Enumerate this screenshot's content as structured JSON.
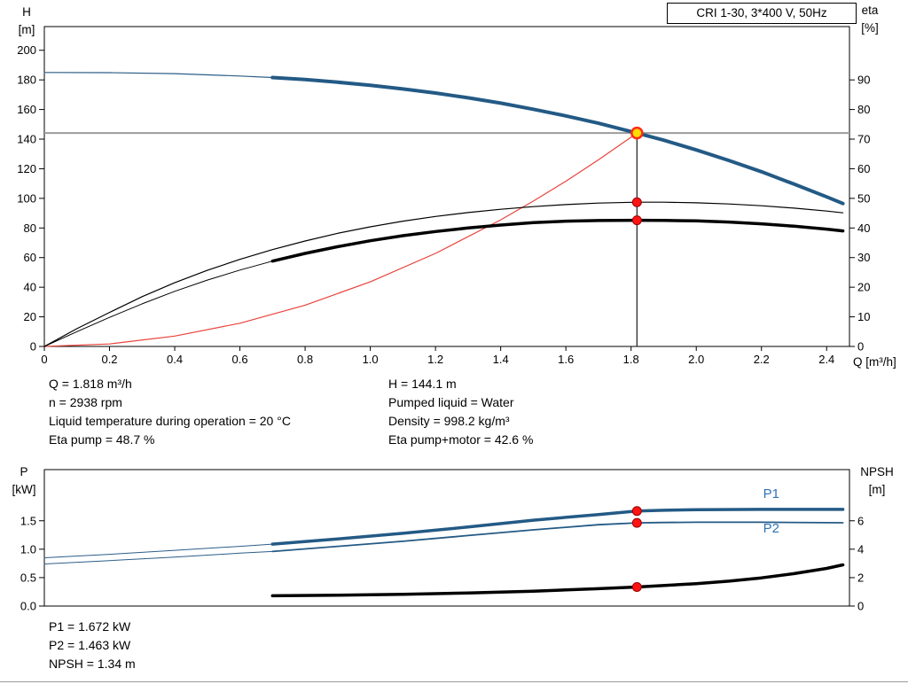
{
  "top_chart": {
    "y_left_title": "H",
    "y_left_unit": "[m]",
    "y_right_title": "eta",
    "y_right_unit": "[%]",
    "x_title": "Q [m³/h]"
  },
  "bottom_chart": {
    "y_left_title": "P",
    "y_left_unit": "[kW]",
    "y_right_title": "NPSH",
    "y_right_unit": "[m]"
  },
  "operating_point_info": {
    "left": [
      "Q = 1.818 m³/h",
      "n = 2938 rpm",
      "Liquid temperature during operation = 20 °C",
      "Eta pump = 48.7 %"
    ],
    "right": [
      "H = 144.1 m",
      "Pumped liquid = Water",
      "Density = 998.2 kg/m³",
      "Eta pump+motor = 42.6 %"
    ]
  },
  "power_info": [
    "P1 = 1.672 kW",
    "P2 = 1.463 kW",
    "NPSH = 1.34 m"
  ],
  "chart_data": [
    {
      "id": "hq_eta",
      "type": "line",
      "title": "CRI 1-30, 3*400 V, 50Hz",
      "xlabel": "Q [m³/h]",
      "ylabel_left": "H [m]",
      "ylabel_right": "eta [%]",
      "xlim": [
        0,
        2.47
      ],
      "ylim_left": [
        0,
        216
      ],
      "ylim_right": [
        0,
        108
      ],
      "grid": false,
      "x_ticks": [
        [
          0,
          "0"
        ],
        [
          0.2,
          "0.2"
        ],
        [
          0.4,
          "0.4"
        ],
        [
          0.6,
          "0.6"
        ],
        [
          0.8,
          "0.8"
        ],
        [
          1,
          "1.0"
        ],
        [
          1.2,
          "1.2"
        ],
        [
          1.4,
          "1.4"
        ],
        [
          1.6,
          "1.6"
        ],
        [
          1.8,
          "1.8"
        ],
        [
          2,
          "2.0"
        ],
        [
          2.2,
          "2.2"
        ],
        [
          2.4,
          "2.4"
        ]
      ],
      "y_ticks_left": [
        [
          0,
          "0"
        ],
        [
          20,
          "20"
        ],
        [
          40,
          "40"
        ],
        [
          60,
          "60"
        ],
        [
          80,
          "80"
        ],
        [
          100,
          "100"
        ],
        [
          120,
          "120"
        ],
        [
          140,
          "140"
        ],
        [
          160,
          "160"
        ],
        [
          180,
          "180"
        ],
        [
          200,
          "200"
        ]
      ],
      "y_ticks_right": [
        [
          0,
          "0"
        ],
        [
          10,
          "10"
        ],
        [
          20,
          "20"
        ],
        [
          30,
          "30"
        ],
        [
          40,
          "40"
        ],
        [
          50,
          "50"
        ],
        [
          60,
          "60"
        ],
        [
          70,
          "70"
        ],
        [
          80,
          "80"
        ],
        [
          90,
          "90"
        ]
      ],
      "ref_lines": [
        {
          "type": "h",
          "y": 144.1,
          "axis": "left",
          "x1": 0,
          "x2": 2.47,
          "color": "#9b9b9b",
          "width": 2
        },
        {
          "type": "v",
          "x": 1.818,
          "y1": 0,
          "y2": 144.1,
          "axis": "left",
          "color": "#1a1a1a",
          "width": 1.2
        }
      ],
      "series": [
        {
          "name": "system-curve",
          "axis": "left",
          "color": "#e8433c",
          "width": 1.2,
          "points": [
            [
              0,
              0
            ],
            [
              0.2,
              1.7
            ],
            [
              0.4,
              7
            ],
            [
              0.6,
              15.7
            ],
            [
              0.8,
              27.9
            ],
            [
              1,
              43.6
            ],
            [
              1.2,
              62.8
            ],
            [
              1.4,
              85.5
            ],
            [
              1.5,
              98.1
            ],
            [
              1.6,
              111.6
            ],
            [
              1.7,
              126
            ],
            [
              1.818,
              144.1
            ]
          ]
        },
        {
          "name": "eta-pump-curve",
          "axis": "right",
          "color": "#000000",
          "width": 1.2,
          "points": [
            [
              0,
              0
            ],
            [
              0.1,
              6
            ],
            [
              0.2,
              11.5
            ],
            [
              0.3,
              16.8
            ],
            [
              0.4,
              21.5
            ],
            [
              0.5,
              25.7
            ],
            [
              0.6,
              29.4
            ],
            [
              0.7,
              32.7
            ],
            [
              0.8,
              35.6
            ],
            [
              0.9,
              38.2
            ],
            [
              1,
              40.4
            ],
            [
              1.1,
              42.3
            ],
            [
              1.2,
              43.9
            ],
            [
              1.3,
              45.2
            ],
            [
              1.4,
              46.3
            ],
            [
              1.5,
              47.2
            ],
            [
              1.6,
              47.9
            ],
            [
              1.7,
              48.4
            ],
            [
              1.818,
              48.7
            ],
            [
              1.9,
              48.7
            ],
            [
              2,
              48.5
            ],
            [
              2.1,
              48.1
            ],
            [
              2.2,
              47.5
            ],
            [
              2.3,
              46.7
            ],
            [
              2.4,
              45.7
            ],
            [
              2.45,
              45.1
            ]
          ]
        },
        {
          "name": "eta-pump-motor-curve-thin",
          "axis": "right",
          "color": "#000000",
          "width": 1,
          "points": [
            [
              0,
              0
            ],
            [
              0.1,
              5
            ],
            [
              0.2,
              9.8
            ],
            [
              0.3,
              14.4
            ],
            [
              0.4,
              18.6
            ],
            [
              0.5,
              22.4
            ],
            [
              0.6,
              25.8
            ],
            [
              0.7,
              28.8
            ]
          ]
        },
        {
          "name": "eta-pump-motor-curve",
          "axis": "right",
          "color": "#000000",
          "width": 3.5,
          "points": [
            [
              0.7,
              28.8
            ],
            [
              0.8,
              31.4
            ],
            [
              0.9,
              33.7
            ],
            [
              1,
              35.7
            ],
            [
              1.1,
              37.4
            ],
            [
              1.2,
              38.8
            ],
            [
              1.3,
              40
            ],
            [
              1.4,
              41
            ],
            [
              1.5,
              41.8
            ],
            [
              1.6,
              42.3
            ],
            [
              1.7,
              42.5
            ],
            [
              1.818,
              42.6
            ],
            [
              1.9,
              42.55
            ],
            [
              2,
              42.4
            ],
            [
              2.1,
              42
            ],
            [
              2.2,
              41.4
            ],
            [
              2.3,
              40.6
            ],
            [
              2.4,
              39.6
            ],
            [
              2.45,
              39
            ]
          ]
        },
        {
          "name": "head-curve-thin",
          "axis": "left",
          "color": "#2b5d87",
          "width": 1.2,
          "points": [
            [
              0,
              185
            ],
            [
              0.2,
              184.9
            ],
            [
              0.4,
              184.2
            ],
            [
              0.6,
              182.6
            ],
            [
              0.7,
              181.6
            ]
          ]
        },
        {
          "name": "head-curve",
          "axis": "left",
          "color": "#235a85",
          "width": 4,
          "points": [
            [
              0.7,
              181.6
            ],
            [
              0.8,
              180.2
            ],
            [
              0.9,
              178.4
            ],
            [
              1,
              176.4
            ],
            [
              1.1,
              173.9
            ],
            [
              1.2,
              171.1
            ],
            [
              1.3,
              167.9
            ],
            [
              1.4,
              164.3
            ],
            [
              1.5,
              160.2
            ],
            [
              1.6,
              155.7
            ],
            [
              1.7,
              150.7
            ],
            [
              1.818,
              144.1
            ],
            [
              1.9,
              139.3
            ],
            [
              2,
              132.7
            ],
            [
              2.1,
              125.6
            ],
            [
              2.2,
              118
            ],
            [
              2.3,
              109.6
            ],
            [
              2.4,
              101
            ],
            [
              2.45,
              96.5
            ]
          ]
        }
      ],
      "markers": [
        {
          "name": "eta-pump-point",
          "x": 1.818,
          "y": 48.7,
          "axis": "right",
          "r": 5,
          "fill": "#ff1414",
          "stroke": "#990000",
          "sw": 1
        },
        {
          "name": "eta-pump-motor-point",
          "x": 1.818,
          "y": 42.6,
          "axis": "right",
          "r": 5,
          "fill": "#ff1414",
          "stroke": "#990000",
          "sw": 1
        },
        {
          "name": "duty-point",
          "x": 1.818,
          "y": 144.1,
          "axis": "left",
          "r": 6,
          "fill": "#ffdd00",
          "stroke": "#ff2a1a",
          "sw": 2.5
        }
      ],
      "labels": []
    },
    {
      "id": "power_npsh",
      "type": "line",
      "title": "",
      "xlabel": "",
      "ylabel_left": "P [kW]",
      "ylabel_right": "NPSH [m]",
      "xlim": [
        0,
        2.47
      ],
      "ylim_left": [
        0,
        2.4
      ],
      "ylim_right": [
        0,
        9.6
      ],
      "grid": false,
      "x_ticks": [],
      "y_ticks_left": [
        [
          0,
          "0.0"
        ],
        [
          0.5,
          "0.5"
        ],
        [
          1,
          "1.0"
        ],
        [
          1.5,
          "1.5"
        ]
      ],
      "y_ticks_right": [
        [
          0,
          "0"
        ],
        [
          2,
          "2"
        ],
        [
          4,
          "4"
        ],
        [
          6,
          "6"
        ]
      ],
      "ref_lines": [],
      "series": [
        {
          "name": "p1-curve-thin",
          "axis": "left",
          "color": "#2b5d87",
          "width": 1,
          "points": [
            [
              0,
              0.85
            ],
            [
              0.2,
              0.91
            ],
            [
              0.4,
              0.98
            ],
            [
              0.6,
              1.05
            ],
            [
              0.7,
              1.09
            ]
          ]
        },
        {
          "name": "p1-curve",
          "axis": "left",
          "color": "#235a85",
          "width": 3.5,
          "points": [
            [
              0.7,
              1.09
            ],
            [
              0.9,
              1.18
            ],
            [
              1.1,
              1.28
            ],
            [
              1.3,
              1.39
            ],
            [
              1.5,
              1.51
            ],
            [
              1.7,
              1.61
            ],
            [
              1.818,
              1.672
            ],
            [
              1.9,
              1.685
            ],
            [
              2,
              1.695
            ],
            [
              2.2,
              1.7
            ],
            [
              2.45,
              1.7
            ]
          ]
        },
        {
          "name": "p2-curve-thin",
          "axis": "left",
          "color": "#2b5d87",
          "width": 1,
          "points": [
            [
              0,
              0.74
            ],
            [
              0.2,
              0.8
            ],
            [
              0.4,
              0.86
            ],
            [
              0.6,
              0.93
            ],
            [
              0.7,
              0.96
            ]
          ]
        },
        {
          "name": "p2-curve",
          "axis": "left",
          "color": "#235a85",
          "width": 1.8,
          "points": [
            [
              0.7,
              0.96
            ],
            [
              0.9,
              1.05
            ],
            [
              1.1,
              1.14
            ],
            [
              1.3,
              1.24
            ],
            [
              1.5,
              1.34
            ],
            [
              1.7,
              1.43
            ],
            [
              1.818,
              1.463
            ],
            [
              1.9,
              1.47
            ],
            [
              2,
              1.475
            ],
            [
              2.2,
              1.475
            ],
            [
              2.45,
              1.465
            ]
          ]
        },
        {
          "name": "npsh-curve",
          "axis": "right",
          "color": "#000000",
          "width": 3.5,
          "points": [
            [
              0.7,
              0.72
            ],
            [
              0.9,
              0.76
            ],
            [
              1.1,
              0.82
            ],
            [
              1.3,
              0.92
            ],
            [
              1.5,
              1.05
            ],
            [
              1.7,
              1.22
            ],
            [
              1.818,
              1.34
            ],
            [
              2,
              1.58
            ],
            [
              2.1,
              1.75
            ],
            [
              2.2,
              1.98
            ],
            [
              2.3,
              2.28
            ],
            [
              2.4,
              2.65
            ],
            [
              2.45,
              2.9
            ]
          ]
        }
      ],
      "markers": [
        {
          "name": "p1-point",
          "x": 1.818,
          "y": 1.672,
          "axis": "left",
          "r": 5,
          "fill": "#ff1414",
          "stroke": "#990000",
          "sw": 1
        },
        {
          "name": "p2-point",
          "x": 1.818,
          "y": 1.463,
          "axis": "left",
          "r": 5,
          "fill": "#ff1414",
          "stroke": "#990000",
          "sw": 1
        },
        {
          "name": "npsh-point",
          "x": 1.818,
          "y": 1.34,
          "axis": "right",
          "r": 5,
          "fill": "#ff1414",
          "stroke": "#990000",
          "sw": 1
        }
      ],
      "labels": [
        {
          "text": "P1",
          "x": 2.23,
          "y": 1.9,
          "axis": "left",
          "color": "#2e74b5",
          "size": 15
        },
        {
          "text": "P2",
          "x": 2.23,
          "y": 1.29,
          "axis": "left",
          "color": "#2e74b5",
          "size": 15
        }
      ]
    }
  ]
}
